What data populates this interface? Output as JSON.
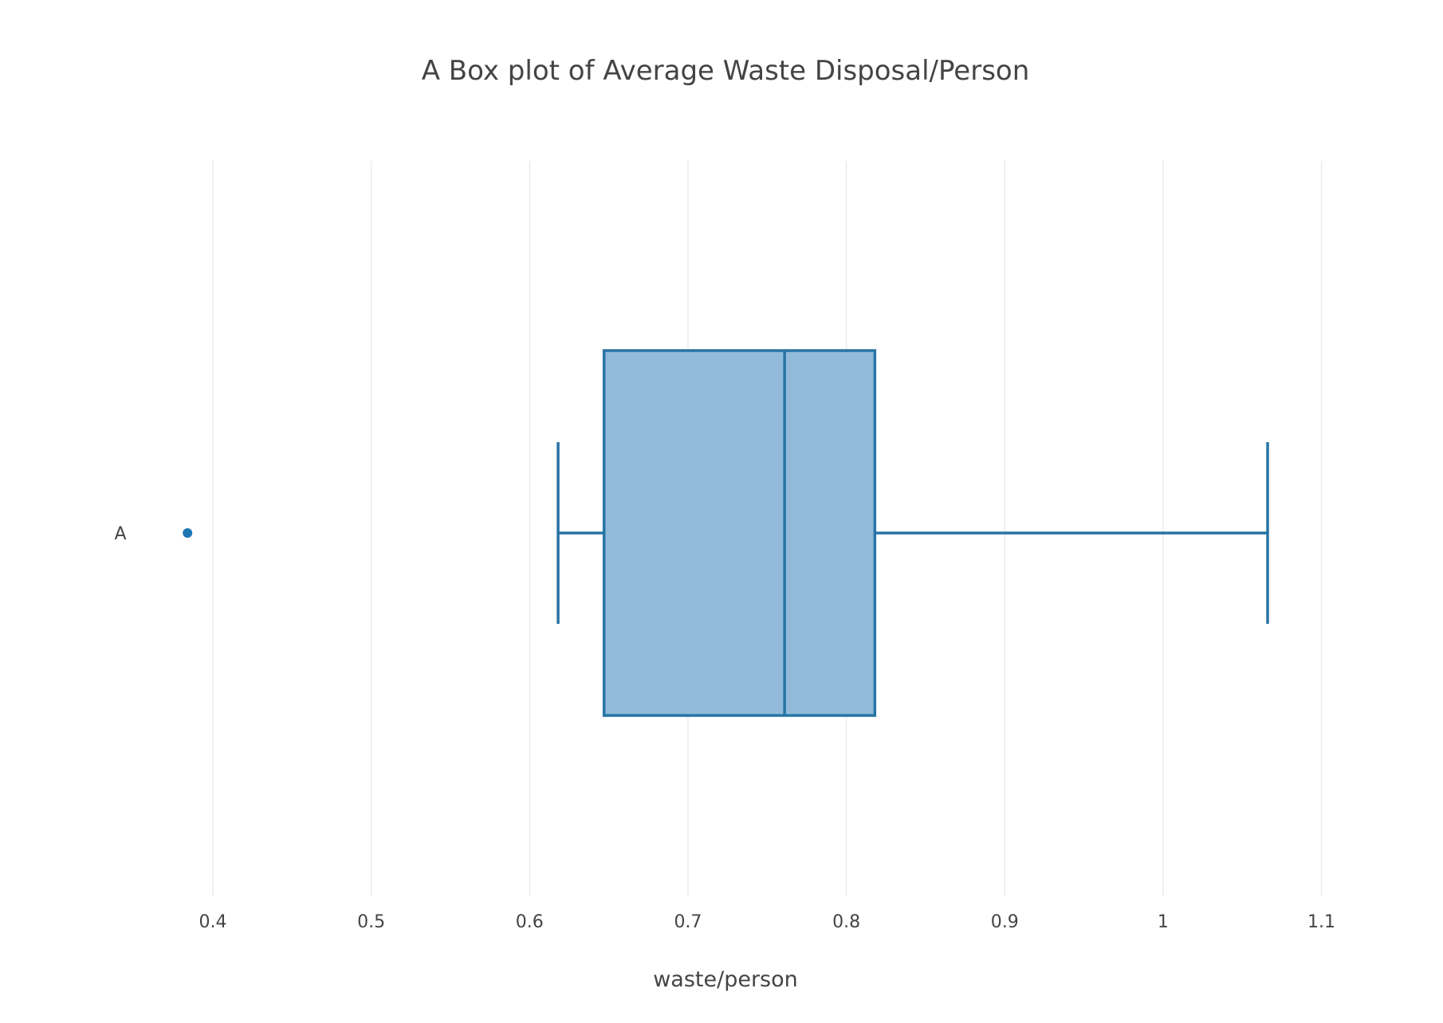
{
  "chart_data": {
    "type": "box",
    "orientation": "horizontal",
    "title": "A Box plot of Average Waste Disposal/Person",
    "xlabel": "waste/person",
    "ylabel": "",
    "xlim": [
      0.335,
      1.11
    ],
    "x_ticks": [
      0.4,
      0.5,
      0.6,
      0.7,
      0.8,
      0.9,
      1,
      1.1
    ],
    "x_tick_labels": [
      "0.4",
      "0.5",
      "0.6",
      "0.7",
      "0.8",
      "0.9",
      "1",
      "1.1"
    ],
    "grid": {
      "x": true,
      "y": false
    },
    "legend": "none",
    "series": [
      {
        "name": "A",
        "lower_whisker": 0.618,
        "q1": 0.647,
        "median": 0.761,
        "q3": 0.818,
        "upper_whisker": 1.066,
        "outliers": [
          0.384
        ]
      }
    ],
    "colors": {
      "box_line": "#2874a6",
      "box_fill": "#91bbd9",
      "outlier": "#1f77b4",
      "grid": "#ebebeb",
      "text": "#444444"
    }
  }
}
